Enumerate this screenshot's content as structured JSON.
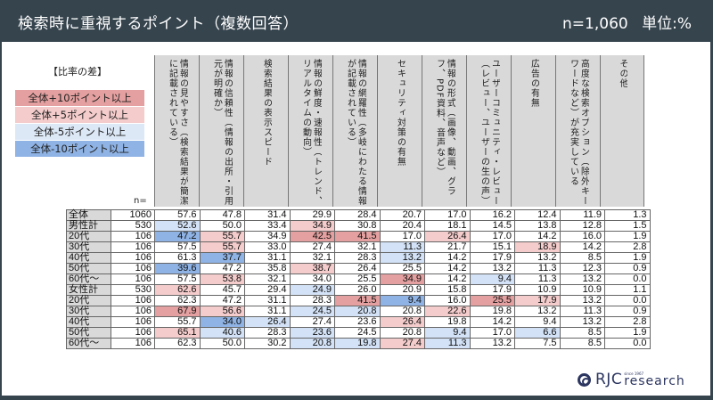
{
  "header": {
    "title": "検索時に重視するポイント（複数回答）",
    "sample": "n=1,060",
    "unit": "単位:%"
  },
  "legend": {
    "title": "【比率の差】",
    "items": [
      {
        "label": "全体+10ポイント以上",
        "color": "#e4a0a0"
      },
      {
        "label": "全体+5ポイント以上",
        "color": "#f4cccc"
      },
      {
        "label": "全体-5ポイント以上",
        "color": "#d3e2f6"
      },
      {
        "label": "全体-10ポイント以上",
        "color": "#8fb3e4"
      }
    ]
  },
  "table": {
    "n_label": "n=",
    "columns": [
      "情報の見やすさ（検索結果が簡潔に記載されている）",
      "情報の信頼性（情報の出所・引用元が明確か）",
      "検索結果の表示スピード",
      "情報の鮮度・速報性（トレンド、リアルタイムの動向）",
      "情報の網羅性（多岐にわたる情報が記載されている）",
      "セキュリティ対策の有無",
      "情報の形式（画像、動画、グラフ、PDF資料、音声など）",
      "ユーザーコミュニティ・レビュー（レビュー、ユーザーの生の声）",
      "広告の有無",
      "高度な検索オプション（除外キーワードなど）が充実している",
      "その他"
    ],
    "rows": [
      {
        "label": "全体",
        "n": "1060",
        "values": [
          "57.6",
          "47.8",
          "31.4",
          "29.9",
          "28.4",
          "20.7",
          "17.0",
          "16.2",
          "12.4",
          "11.9",
          "1.3"
        ],
        "colors": [
          "",
          "",
          "",
          "",
          "",
          "",
          "",
          "",
          "",
          "",
          ""
        ]
      },
      {
        "label": "男性計",
        "n": "530",
        "values": [
          "52.6",
          "50.0",
          "33.4",
          "34.9",
          "30.8",
          "20.4",
          "18.1",
          "14.5",
          "13.8",
          "12.8",
          "1.5"
        ],
        "colors": [
          "b1",
          "",
          "",
          "r1",
          "",
          "",
          "",
          "",
          "",
          "",
          ""
        ]
      },
      {
        "label": "20代",
        "n": "106",
        "values": [
          "47.2",
          "55.7",
          "34.9",
          "42.5",
          "41.5",
          "17.0",
          "26.4",
          "17.0",
          "14.2",
          "16.0",
          "1.9"
        ],
        "colors": [
          "b2",
          "r1",
          "",
          "r2",
          "r2",
          "",
          "r1",
          "",
          "",
          "",
          ""
        ]
      },
      {
        "label": "30代",
        "n": "106",
        "values": [
          "57.5",
          "55.7",
          "33.0",
          "27.4",
          "32.1",
          "11.3",
          "21.7",
          "15.1",
          "18.9",
          "14.2",
          "2.8"
        ],
        "colors": [
          "",
          "r1",
          "",
          "",
          "",
          "b1",
          "",
          "",
          "r1",
          "",
          ""
        ]
      },
      {
        "label": "40代",
        "n": "106",
        "values": [
          "61.3",
          "37.7",
          "31.1",
          "32.1",
          "28.3",
          "13.2",
          "14.2",
          "17.9",
          "13.2",
          "8.5",
          "1.9"
        ],
        "colors": [
          "",
          "b2",
          "",
          "",
          "",
          "b1",
          "",
          "",
          "",
          "",
          ""
        ]
      },
      {
        "label": "50代",
        "n": "106",
        "values": [
          "39.6",
          "47.2",
          "35.8",
          "38.7",
          "26.4",
          "25.5",
          "14.2",
          "13.2",
          "11.3",
          "12.3",
          "0.9"
        ],
        "colors": [
          "b2",
          "",
          "",
          "r1",
          "",
          "",
          "",
          "",
          "",
          "",
          ""
        ]
      },
      {
        "label": "60代～",
        "n": "106",
        "values": [
          "57.5",
          "53.8",
          "32.1",
          "34.0",
          "25.5",
          "34.9",
          "14.2",
          "9.4",
          "11.3",
          "13.2",
          "0.0"
        ],
        "colors": [
          "",
          "r1",
          "",
          "",
          "",
          "r2",
          "",
          "b1",
          "",
          "",
          ""
        ]
      },
      {
        "label": "女性計",
        "n": "530",
        "values": [
          "62.6",
          "45.7",
          "29.4",
          "24.9",
          "26.0",
          "20.9",
          "15.8",
          "17.9",
          "10.9",
          "10.9",
          "1.1"
        ],
        "colors": [
          "r1",
          "",
          "",
          "b1",
          "",
          "",
          "",
          "",
          "",
          "",
          ""
        ]
      },
      {
        "label": "20代",
        "n": "106",
        "values": [
          "62.3",
          "47.2",
          "31.1",
          "28.3",
          "41.5",
          "9.4",
          "16.0",
          "25.5",
          "17.9",
          "13.2",
          "0.0"
        ],
        "colors": [
          "",
          "",
          "",
          "",
          "r2",
          "b2",
          "",
          "r2",
          "r1",
          "",
          ""
        ]
      },
      {
        "label": "30代",
        "n": "106",
        "values": [
          "67.9",
          "56.6",
          "31.1",
          "24.5",
          "20.8",
          "20.8",
          "22.6",
          "19.8",
          "13.2",
          "11.3",
          "0.9"
        ],
        "colors": [
          "r2",
          "r1",
          "",
          "b1",
          "b1",
          "",
          "r1",
          "",
          "",
          "",
          ""
        ]
      },
      {
        "label": "40代",
        "n": "106",
        "values": [
          "55.7",
          "34.0",
          "26.4",
          "27.4",
          "23.6",
          "26.4",
          "19.8",
          "14.2",
          "9.4",
          "13.2",
          "2.8"
        ],
        "colors": [
          "",
          "b2",
          "b1",
          "",
          "",
          "r1",
          "",
          "",
          "",
          "",
          ""
        ]
      },
      {
        "label": "50代",
        "n": "106",
        "values": [
          "65.1",
          "40.6",
          "28.3",
          "23.6",
          "24.5",
          "20.8",
          "9.4",
          "17.0",
          "6.6",
          "8.5",
          "1.9"
        ],
        "colors": [
          "r1",
          "b1",
          "",
          "b1",
          "",
          "",
          "b1",
          "",
          "b1",
          "",
          ""
        ]
      },
      {
        "label": "60代～",
        "n": "106",
        "values": [
          "62.3",
          "50.0",
          "30.2",
          "20.8",
          "19.8",
          "27.4",
          "11.3",
          "13.2",
          "7.5",
          "8.5",
          "0.0"
        ],
        "colors": [
          "",
          "",
          "",
          "b1",
          "b1",
          "r1",
          "b1",
          "",
          "",
          "",
          ""
        ]
      }
    ]
  },
  "logo": {
    "brand": "RJC",
    "since": "since 1967",
    "suffix": "research"
  },
  "chart_data": {
    "type": "table",
    "title": "検索時に重視するポイント（複数回答）",
    "unit": "%",
    "total_n": 1060,
    "categories": [
      "全体",
      "男性計",
      "男性20代",
      "男性30代",
      "男性40代",
      "男性50代",
      "男性60代～",
      "女性計",
      "女性20代",
      "女性30代",
      "女性40代",
      "女性50代",
      "女性60代～"
    ],
    "n": [
      1060,
      530,
      106,
      106,
      106,
      106,
      106,
      530,
      106,
      106,
      106,
      106,
      106
    ],
    "series": [
      {
        "name": "情報の見やすさ（検索結果が簡潔に記載されている）",
        "values": [
          57.6,
          52.6,
          47.2,
          57.5,
          61.3,
          39.6,
          57.5,
          62.6,
          62.3,
          67.9,
          55.7,
          65.1,
          62.3
        ]
      },
      {
        "name": "情報の信頼性（情報の出所・引用元が明確か）",
        "values": [
          47.8,
          50.0,
          55.7,
          55.7,
          37.7,
          47.2,
          53.8,
          45.7,
          47.2,
          56.6,
          34.0,
          40.6,
          50.0
        ]
      },
      {
        "name": "検索結果の表示スピード",
        "values": [
          31.4,
          33.4,
          34.9,
          33.0,
          31.1,
          35.8,
          32.1,
          29.4,
          31.1,
          31.1,
          26.4,
          28.3,
          30.2
        ]
      },
      {
        "name": "情報の鮮度・速報性（トレンド、リアルタイムの動向）",
        "values": [
          29.9,
          34.9,
          42.5,
          27.4,
          32.1,
          38.7,
          34.0,
          24.9,
          28.3,
          24.5,
          27.4,
          23.6,
          20.8
        ]
      },
      {
        "name": "情報の網羅性（多岐にわたる情報が記載されている）",
        "values": [
          28.4,
          30.8,
          41.5,
          32.1,
          28.3,
          26.4,
          25.5,
          26.0,
          41.5,
          20.8,
          23.6,
          24.5,
          19.8
        ]
      },
      {
        "name": "セキュリティ対策の有無",
        "values": [
          20.7,
          20.4,
          17.0,
          11.3,
          13.2,
          25.5,
          34.9,
          20.9,
          9.4,
          20.8,
          26.4,
          20.8,
          27.4
        ]
      },
      {
        "name": "情報の形式（画像、動画、グラフ、PDF資料、音声など）",
        "values": [
          17.0,
          18.1,
          26.4,
          21.7,
          14.2,
          14.2,
          14.2,
          15.8,
          16.0,
          22.6,
          19.8,
          9.4,
          11.3
        ]
      },
      {
        "name": "ユーザーコミュニティ・レビュー（レビュー、ユーザーの生の声）",
        "values": [
          16.2,
          14.5,
          17.0,
          15.1,
          17.9,
          13.2,
          9.4,
          17.9,
          25.5,
          19.8,
          14.2,
          17.0,
          13.2
        ]
      },
      {
        "name": "広告の有無",
        "values": [
          12.4,
          13.8,
          14.2,
          18.9,
          13.2,
          11.3,
          11.3,
          10.9,
          17.9,
          13.2,
          9.4,
          6.6,
          7.5
        ]
      },
      {
        "name": "高度な検索オプション（除外キーワードなど）が充実している",
        "values": [
          11.9,
          12.8,
          16.0,
          14.2,
          8.5,
          12.3,
          13.2,
          10.9,
          13.2,
          11.3,
          13.2,
          8.5,
          8.5
        ]
      },
      {
        "name": "その他",
        "values": [
          1.3,
          1.5,
          1.9,
          2.8,
          1.9,
          0.9,
          0.0,
          1.1,
          0.0,
          0.9,
          2.8,
          1.9,
          0.0
        ]
      }
    ],
    "legend": [
      "全体+10ポイント以上",
      "全体+5ポイント以上",
      "全体-5ポイント以上",
      "全体-10ポイント以上"
    ]
  }
}
